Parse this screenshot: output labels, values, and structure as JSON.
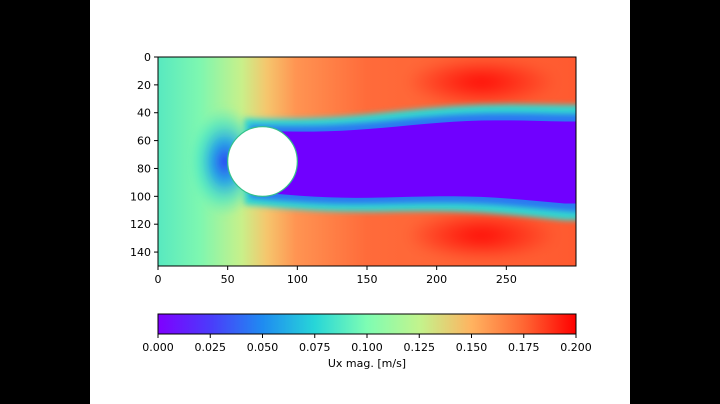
{
  "chart_data": {
    "type": "heatmap",
    "title": "",
    "xlabel": "",
    "ylabel": "",
    "xlim": [
      0,
      300
    ],
    "ylim": [
      150,
      0
    ],
    "x_ticks": [
      "0",
      "50",
      "100",
      "150",
      "200",
      "250"
    ],
    "y_ticks": [
      "0",
      "20",
      "40",
      "60",
      "80",
      "100",
      "120",
      "140"
    ],
    "field": {
      "obstacle": {
        "shape": "circle",
        "center": [
          75,
          75
        ],
        "radius": 25
      },
      "inlet_value": 0.09,
      "free_stream_value": 0.175,
      "max_value": 0.2,
      "wake": "low-velocity wake extending downstream behind the cylinder"
    },
    "colorbar": {
      "label": "Ux mag. [m/s]",
      "range": [
        0.0,
        0.2
      ],
      "colormap": "rainbow",
      "ticks": [
        "0.000",
        "0.025",
        "0.050",
        "0.075",
        "0.100",
        "0.125",
        "0.150",
        "0.175",
        "0.200"
      ]
    }
  }
}
